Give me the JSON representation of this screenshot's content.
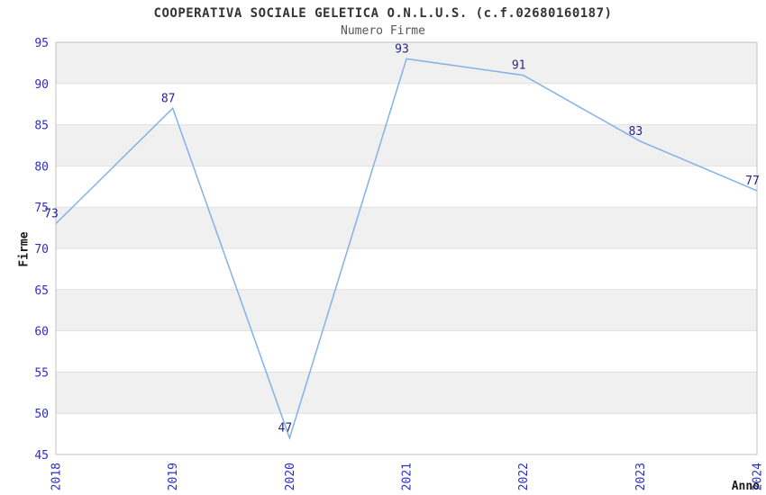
{
  "chart_data": {
    "type": "line",
    "title": "COOPERATIVA SOCIALE GELETICA O.N.L.U.S. (c.f.02680160187)",
    "subtitle": "Numero Firme",
    "xlabel": "Anno",
    "ylabel": "Firme",
    "categories": [
      "2018",
      "2019",
      "2020",
      "2021",
      "2022",
      "2023",
      "2024"
    ],
    "values": [
      73,
      87,
      47,
      93,
      91,
      83,
      77
    ],
    "ylim": [
      45,
      95
    ],
    "ytick_step": 5,
    "yticks": [
      45,
      50,
      55,
      60,
      65,
      70,
      75,
      80,
      85,
      90,
      95
    ],
    "legend": "none",
    "grid": "horizontal alternating bands",
    "x_tick_rotation_deg": -90,
    "colors": {
      "line": "#84b1e6",
      "point_label": "#26268c",
      "tick_label": "#2d2dcc",
      "band": "#f0f0f0",
      "grid_line": "#e0e0e0",
      "plot_border": "#c0c0c0",
      "title": "#333333",
      "subtitle": "#555555",
      "axis_title": "#1a1a1a",
      "background": "#ffffff"
    }
  }
}
